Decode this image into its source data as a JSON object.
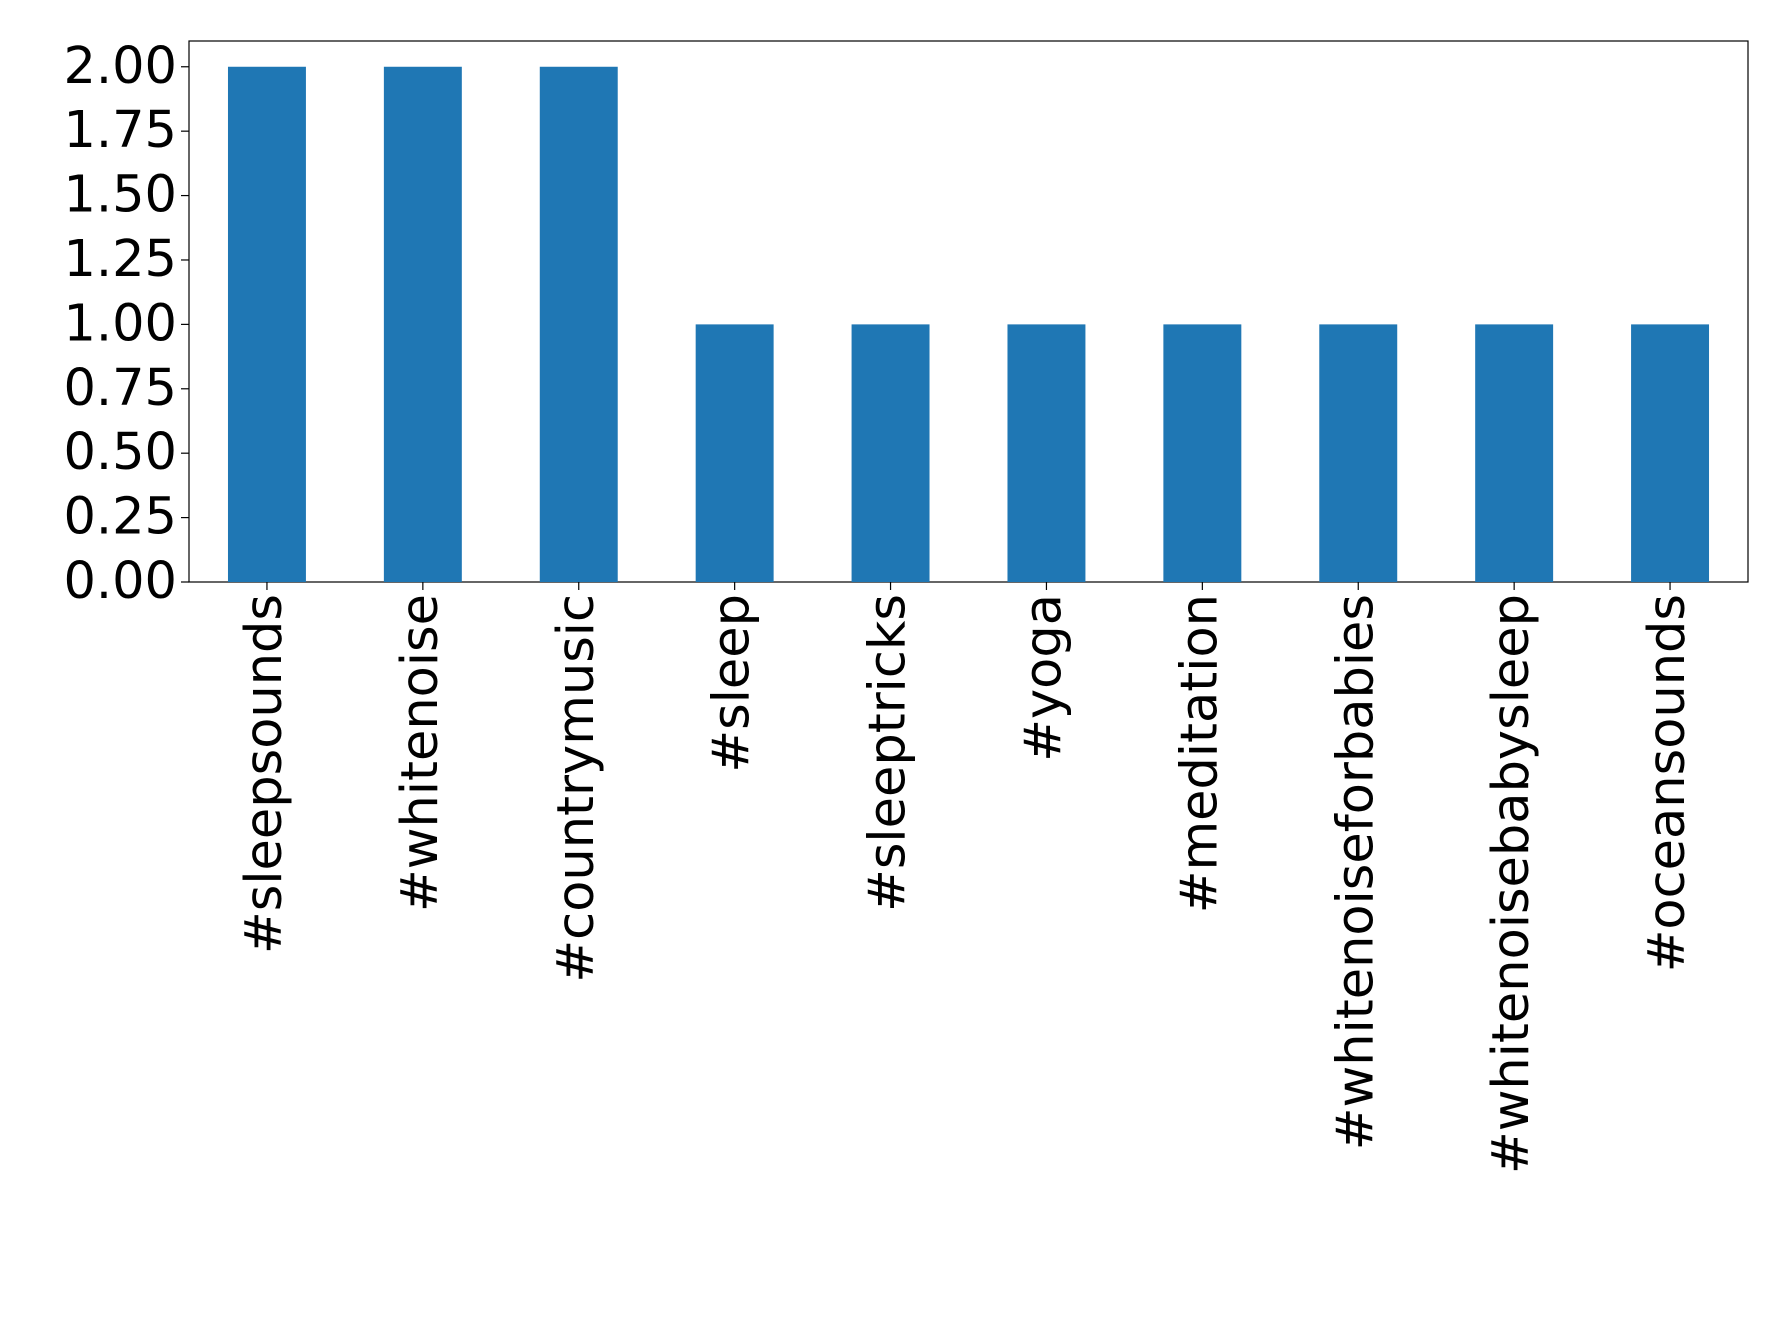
{
  "chart_data": {
    "type": "bar",
    "categories": [
      "#sleepsounds",
      "#whitenoise",
      "#countrymusic",
      "#sleep",
      "#sleeptricks",
      "#yoga",
      "#meditation",
      "#whitenoiseforbabies",
      "#whitenoisebabysleep",
      "#oceansounds"
    ],
    "values": [
      2,
      2,
      2,
      1,
      1,
      1,
      1,
      1,
      1,
      1
    ],
    "color": "#1f77b4",
    "ylim": [
      0,
      2.1
    ],
    "yticks": [
      {
        "value": 0,
        "label": "0.00"
      },
      {
        "value": 0.25,
        "label": "0.25"
      },
      {
        "value": 0.5,
        "label": "0.50"
      },
      {
        "value": 0.75,
        "label": "0.75"
      },
      {
        "value": 1,
        "label": "1.00"
      },
      {
        "value": 1.25,
        "label": "1.25"
      },
      {
        "value": 1.5,
        "label": "1.50"
      },
      {
        "value": 1.75,
        "label": "1.75"
      },
      {
        "value": 2,
        "label": "2.00"
      }
    ],
    "grid": false
  }
}
